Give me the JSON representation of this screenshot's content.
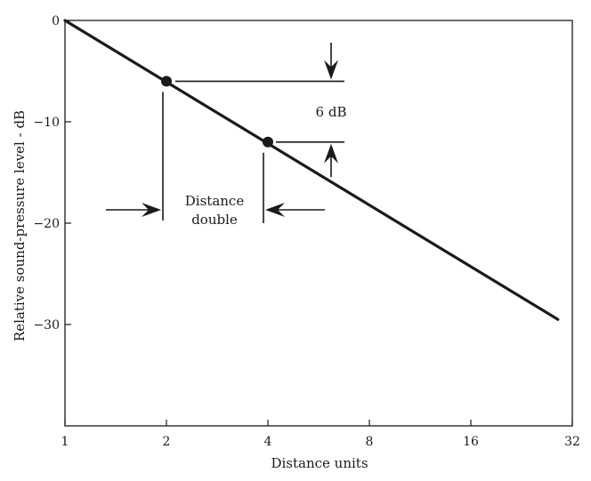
{
  "chart_data": {
    "type": "line",
    "xlabel": "Distance units",
    "ylabel": "Relative sound-pressure level - dB",
    "x_scale": "log2",
    "xlim": [
      1,
      32
    ],
    "ylim": [
      -40,
      0
    ],
    "grid": false,
    "legend": "none",
    "x_ticks": [
      {
        "value": 1,
        "label": "1"
      },
      {
        "value": 2,
        "label": "2"
      },
      {
        "value": 4,
        "label": "4"
      },
      {
        "value": 8,
        "label": "8"
      },
      {
        "value": 16,
        "label": "16"
      },
      {
        "value": 32,
        "label": "32"
      }
    ],
    "y_ticks": [
      {
        "value": 0,
        "label": "0"
      },
      {
        "value": -10,
        "label": "−10"
      },
      {
        "value": -20,
        "label": "−20"
      },
      {
        "value": -30,
        "label": "−30"
      }
    ],
    "series": [
      {
        "x": [
          1,
          29
        ],
        "y": [
          0,
          -29.5
        ]
      }
    ],
    "markers": [
      {
        "x": 2,
        "y": -6
      },
      {
        "x": 4,
        "y": -12
      }
    ],
    "annotations": {
      "db_label": "6 dB",
      "distance_label_line1": "Distance",
      "distance_label_line2": "double"
    },
    "line_color": "#1a1a1a"
  }
}
